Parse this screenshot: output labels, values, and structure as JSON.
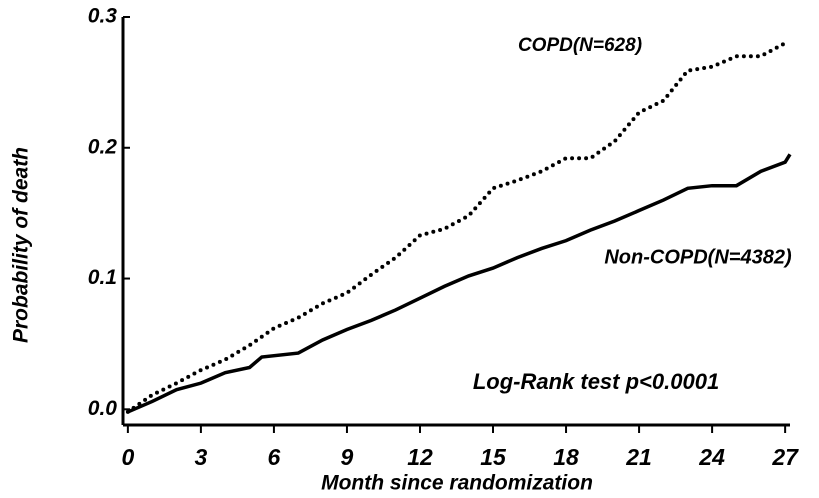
{
  "chart_data": {
    "type": "line",
    "x_label": "Month since randomization",
    "y_label": "Probability of death",
    "annotation": "Log-Rank test p<0.0001",
    "xlim": [
      -0.2,
      27.2
    ],
    "ylim": [
      -0.012,
      0.3
    ],
    "xticks": [
      0,
      3,
      6,
      9,
      12,
      15,
      18,
      21,
      24,
      27
    ],
    "yticks": [
      {
        "value": 0,
        "label": "0.0"
      },
      0.1,
      0.2,
      0.3
    ],
    "series": [
      {
        "name": "COPD(N=628)",
        "color": "#000000",
        "style": "dotted",
        "x": [
          0,
          1,
          2,
          3,
          4,
          5,
          6,
          7,
          8,
          9,
          10,
          11,
          12,
          13,
          14,
          15,
          16,
          17,
          18,
          19,
          20,
          21,
          22,
          23,
          24,
          25,
          26,
          27
        ],
        "values": [
          -0.002,
          0.011,
          0.02,
          0.03,
          0.038,
          0.049,
          0.062,
          0.07,
          0.081,
          0.089,
          0.103,
          0.116,
          0.133,
          0.138,
          0.148,
          0.169,
          0.175,
          0.182,
          0.192,
          0.192,
          0.205,
          0.227,
          0.236,
          0.259,
          0.262,
          0.27,
          0.27,
          0.28
        ]
      },
      {
        "name": "Non-COPD(N=4382)",
        "color": "#000000",
        "style": "solid",
        "x": [
          0,
          1,
          2,
          3,
          4,
          5,
          5.5,
          7,
          8,
          9,
          10,
          11,
          12,
          13,
          14,
          15,
          16,
          17,
          18,
          19,
          20,
          21,
          22,
          23,
          24,
          25,
          26,
          27,
          27.2
        ],
        "values": [
          -0.002,
          0.006,
          0.015,
          0.02,
          0.028,
          0.032,
          0.04,
          0.043,
          0.053,
          0.061,
          0.068,
          0.076,
          0.085,
          0.094,
          0.102,
          0.108,
          0.116,
          0.123,
          0.129,
          0.137,
          0.144,
          0.152,
          0.16,
          0.169,
          0.171,
          0.171,
          0.182,
          0.189,
          0.195
        ]
      }
    ]
  }
}
